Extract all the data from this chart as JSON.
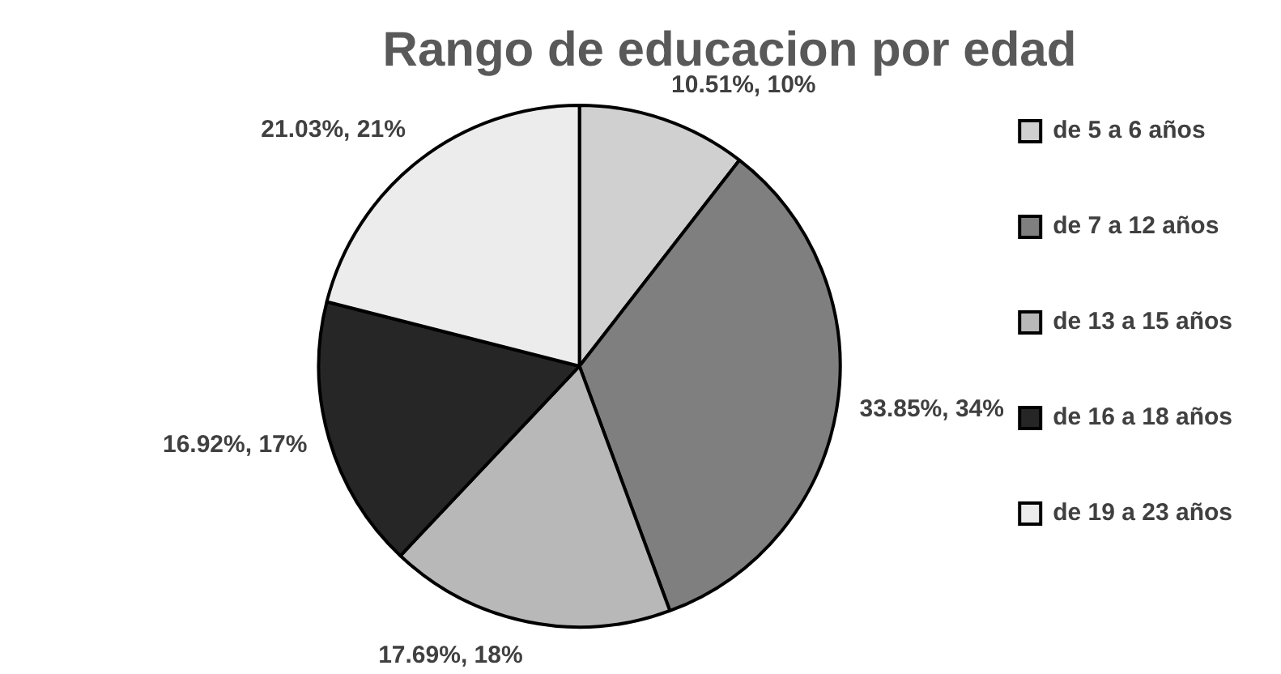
{
  "chart_data": {
    "type": "pie",
    "title": "Rango de educacion por edad",
    "categories": [
      "de 5 a 6 años",
      "de 7 a 12 años",
      "de 13 a 15 años",
      "de 16 a 18 años",
      "de 19 a 23 años"
    ],
    "values": [
      10.51,
      33.85,
      17.69,
      16.92,
      21.03
    ],
    "colors": [
      "#d0d0d0",
      "#7f7f7f",
      "#b8b8b8",
      "#262626",
      "#ececec"
    ],
    "value_labels": [
      "10.51%, 10%",
      "33.85%, 34%",
      "17.69%, 18%",
      "16.92%, 17%",
      "21.03%, 21%"
    ],
    "legend": "right"
  }
}
